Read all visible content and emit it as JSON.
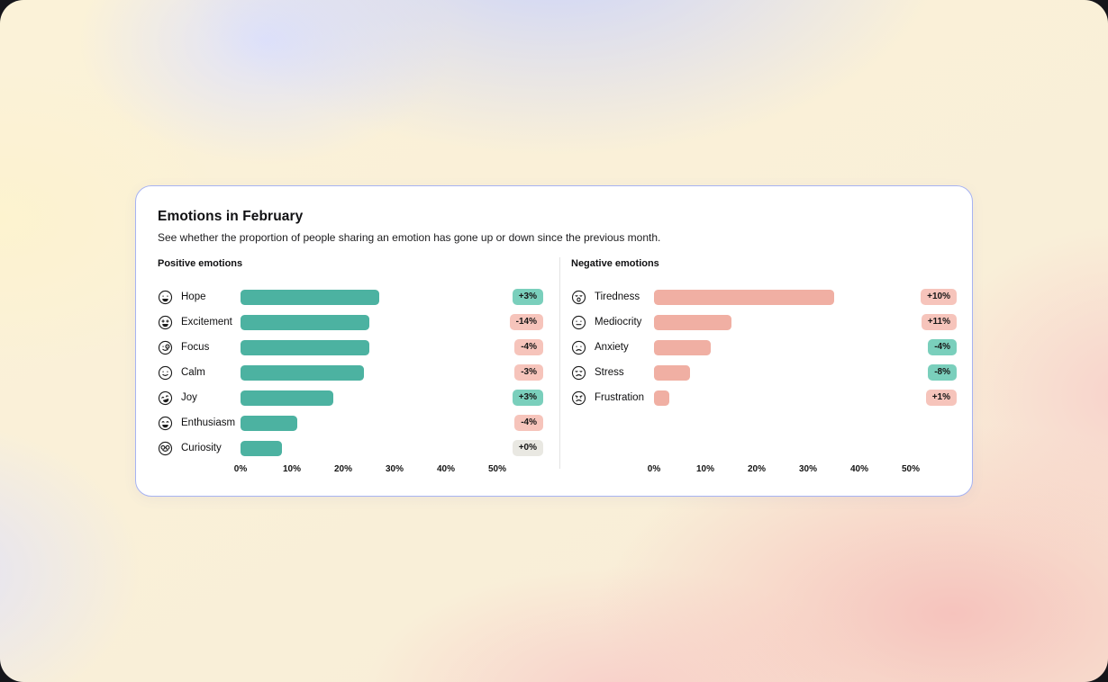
{
  "card": {
    "title": "Emotions in February",
    "subtitle": "See whether the proportion of people sharing an emotion has gone up or down since the previous month."
  },
  "axis": {
    "max": 50,
    "tick_labels": [
      "0%",
      "10%",
      "20%",
      "30%",
      "40%",
      "50%"
    ]
  },
  "badge_colors": {
    "good": "#7ACFBC",
    "bad": "#F6C4BB",
    "neutral": "#E9E8E2"
  },
  "panels": [
    {
      "id": "positive",
      "header": "Positive emotions",
      "bar_color": "#4CB2A1",
      "rows": [
        {
          "icon": "grinning-face-icon",
          "face": "grin",
          "label": "Hope",
          "value": 27,
          "change": "+3%",
          "tone": "good"
        },
        {
          "icon": "excited-face-icon",
          "face": "star",
          "label": "Excitement",
          "value": 25,
          "change": "-14%",
          "tone": "bad"
        },
        {
          "icon": "focused-face-icon",
          "face": "monocle",
          "label": "Focus",
          "value": 25,
          "change": "-4%",
          "tone": "bad"
        },
        {
          "icon": "calm-face-icon",
          "face": "smile",
          "label": "Calm",
          "value": 24,
          "change": "-3%",
          "tone": "bad"
        },
        {
          "icon": "laughing-face-icon",
          "face": "laugh",
          "label": "Joy",
          "value": 18,
          "change": "+3%",
          "tone": "good"
        },
        {
          "icon": "beaming-face-icon",
          "face": "beam",
          "label": "Enthusiasm",
          "value": 11,
          "change": "-4%",
          "tone": "bad"
        },
        {
          "icon": "curious-face-icon",
          "face": "glasses",
          "label": "Curiosity",
          "value": 8,
          "change": "+0%",
          "tone": "neutral"
        }
      ]
    },
    {
      "id": "negative",
      "header": "Negative emotions",
      "bar_color": "#F0AFA3",
      "rows": [
        {
          "icon": "tired-face-icon",
          "face": "yawn",
          "label": "Tiredness",
          "value": 35,
          "change": "+10%",
          "tone": "bad"
        },
        {
          "icon": "neutral-face-icon",
          "face": "neutral",
          "label": "Mediocrity",
          "value": 15,
          "change": "+11%",
          "tone": "bad"
        },
        {
          "icon": "anxious-face-icon",
          "face": "worried",
          "label": "Anxiety",
          "value": 11,
          "change": "-4%",
          "tone": "good"
        },
        {
          "icon": "stressed-face-icon",
          "face": "distress",
          "label": "Stress",
          "value": 7,
          "change": "-8%",
          "tone": "good"
        },
        {
          "icon": "frustrated-face-icon",
          "face": "angry",
          "label": "Frustration",
          "value": 3,
          "change": "+1%",
          "tone": "bad"
        }
      ]
    }
  ],
  "chart_data": [
    {
      "type": "bar",
      "orientation": "horizontal",
      "title": "Positive emotions",
      "categories": [
        "Hope",
        "Excitement",
        "Focus",
        "Calm",
        "Joy",
        "Enthusiasm",
        "Curiosity"
      ],
      "values": [
        27,
        25,
        25,
        24,
        18,
        11,
        8
      ],
      "change_vs_previous_month": [
        "+3%",
        "-14%",
        "-4%",
        "-3%",
        "+3%",
        "-4%",
        "+0%"
      ],
      "xlabel": "",
      "ylabel": "",
      "xlim": [
        0,
        50
      ],
      "x_tick_labels": [
        "0%",
        "10%",
        "20%",
        "30%",
        "40%",
        "50%"
      ],
      "grid": false,
      "bar_color": "#4CB2A1"
    },
    {
      "type": "bar",
      "orientation": "horizontal",
      "title": "Negative emotions",
      "categories": [
        "Tiredness",
        "Mediocrity",
        "Anxiety",
        "Stress",
        "Frustration"
      ],
      "values": [
        35,
        15,
        11,
        7,
        3
      ],
      "change_vs_previous_month": [
        "+10%",
        "+11%",
        "-4%",
        "-8%",
        "+1%"
      ],
      "xlabel": "",
      "ylabel": "",
      "xlim": [
        0,
        50
      ],
      "x_tick_labels": [
        "0%",
        "10%",
        "20%",
        "30%",
        "40%",
        "50%"
      ],
      "grid": false,
      "bar_color": "#F0AFA3"
    }
  ]
}
